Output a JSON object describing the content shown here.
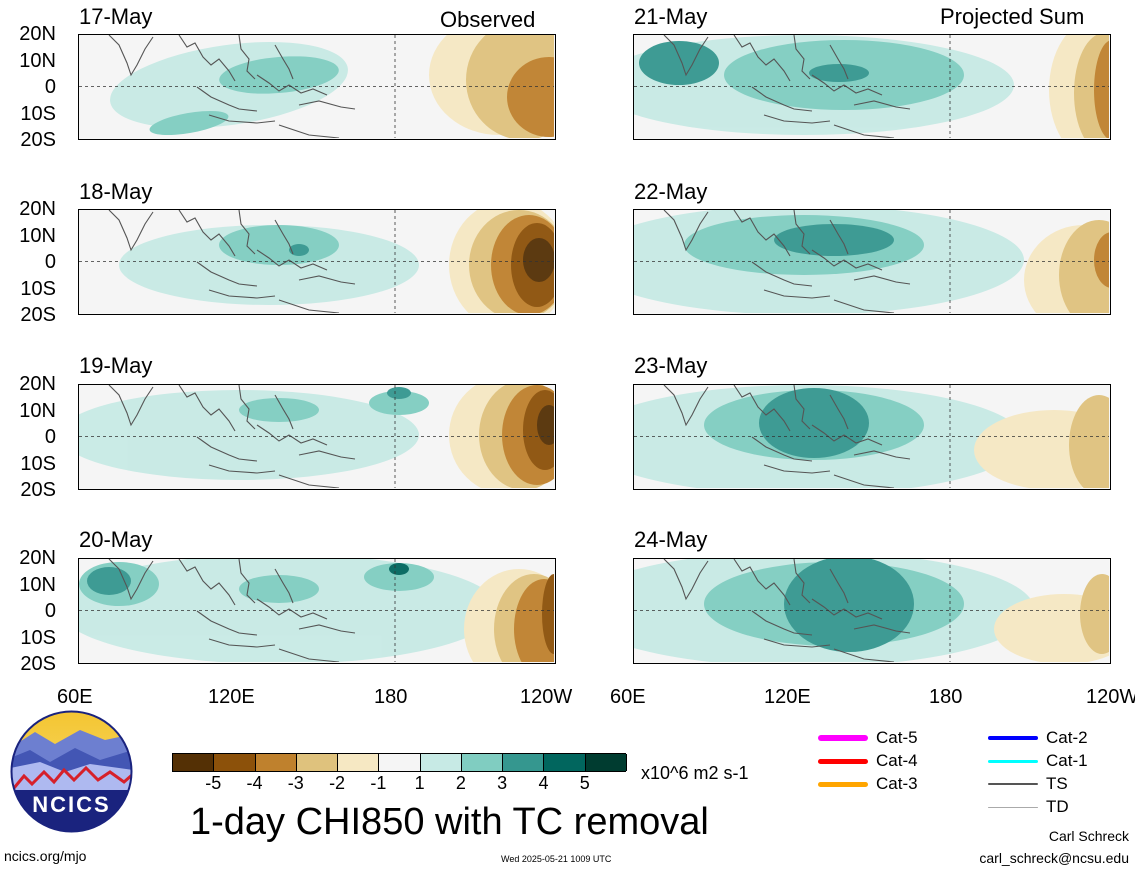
{
  "left_column_title": "Observed",
  "right_column_title": "Projected Sum",
  "panels": [
    {
      "date": "17-May"
    },
    {
      "date": "21-May"
    },
    {
      "date": "18-May"
    },
    {
      "date": "22-May"
    },
    {
      "date": "19-May"
    },
    {
      "date": "23-May"
    },
    {
      "date": "20-May"
    },
    {
      "date": "24-May"
    }
  ],
  "lat_labels": [
    "20N",
    "10N",
    "0",
    "10S",
    "20S"
  ],
  "lon_labels": [
    "60E",
    "120E",
    "180",
    "120W"
  ],
  "colorbar": {
    "ticks": [
      "-5",
      "-4",
      "-3",
      "-2",
      "-1",
      "1",
      "2",
      "3",
      "4",
      "5"
    ],
    "colors": [
      "#543005",
      "#8c510a",
      "#bf812d",
      "#dfc27d",
      "#f6e8c3",
      "#f5f5f5",
      "#c7eae5",
      "#80cdc1",
      "#35978f",
      "#01665e",
      "#003c30"
    ],
    "units": "x10^6 m2 s-1"
  },
  "main_title": "1-day CHI850 with TC removal",
  "tc_legend": [
    {
      "label": "Cat-5",
      "color": "#ff00ff"
    },
    {
      "label": "Cat-4",
      "color": "#ff0000"
    },
    {
      "label": "Cat-3",
      "color": "#ffa500"
    },
    {
      "label": "Cat-2",
      "color": "#0000ff"
    },
    {
      "label": "Cat-1",
      "color": "#00ffff"
    },
    {
      "label": "TS",
      "color": "#555555"
    },
    {
      "label": "TD",
      "color": "#aaaaaa"
    }
  ],
  "logo_text": "NCICS",
  "footer_url": "ncics.org/mjo",
  "footer_timestamp": "Wed 2025-05-21 1009 UTC",
  "author_name": "Carl Schreck",
  "author_email": "carl_schreck@ncsu.edu",
  "chart_data": {
    "type": "heatmap",
    "variable": "CHI850",
    "units": "x10^6 m2 s-1",
    "x_range": [
      "60E",
      "120W"
    ],
    "y_range": [
      "20S",
      "20N"
    ],
    "contour_levels": [
      -5,
      -4,
      -3,
      -2,
      -1,
      1,
      2,
      3,
      4,
      5
    ],
    "panels": [
      {
        "date": "17-May",
        "group": "Observed"
      },
      {
        "date": "18-May",
        "group": "Observed"
      },
      {
        "date": "19-May",
        "group": "Observed"
      },
      {
        "date": "20-May",
        "group": "Observed"
      },
      {
        "date": "21-May",
        "group": "Projected Sum"
      },
      {
        "date": "22-May",
        "group": "Projected Sum"
      },
      {
        "date": "23-May",
        "group": "Projected Sum"
      },
      {
        "date": "24-May",
        "group": "Projected Sum"
      }
    ]
  }
}
